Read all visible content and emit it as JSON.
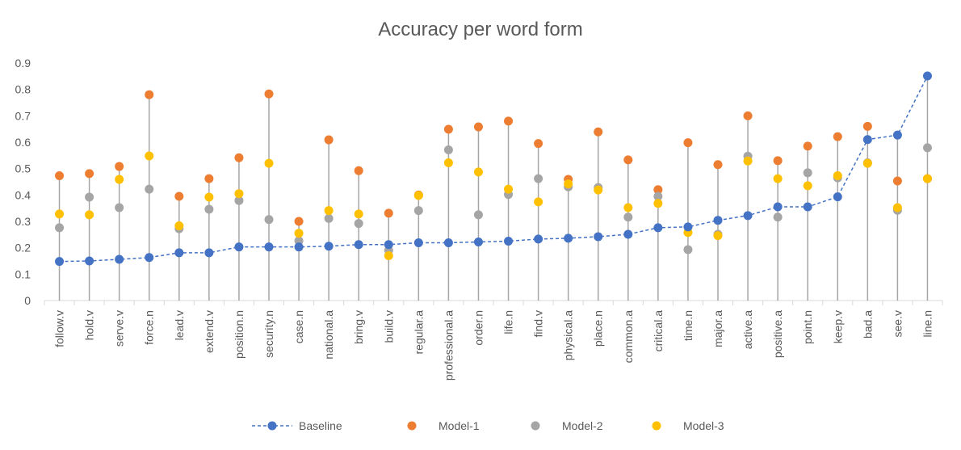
{
  "chart_data": {
    "type": "line",
    "title": "Accuracy per word form",
    "xlabel": "",
    "ylabel": "",
    "ylim": [
      0,
      0.9
    ],
    "y_ticks": [
      "0",
      "0.1",
      "0.2",
      "0.3",
      "0.4",
      "0.5",
      "0.6",
      "0.7",
      "0.8",
      "0.9"
    ],
    "y_tick_values": [
      0,
      0.1,
      0.2,
      0.3,
      0.4,
      0.5,
      0.6,
      0.7,
      0.8,
      0.9
    ],
    "legend_position": "bottom",
    "grid": false,
    "categories": [
      "follow.v",
      "hold.v",
      "serve.v",
      "force.n",
      "lead.v",
      "extend.v",
      "position.n",
      "security.n",
      "case.n",
      "national.a",
      "bring.v",
      "build.v",
      "regular.a",
      "professional.a",
      "order.n",
      "life.n",
      "find.v",
      "physical.a",
      "place.n",
      "common.a",
      "critical.a",
      "time.n",
      "major.a",
      "active.a",
      "positive.a",
      "point.n",
      "keep.v",
      "bad.a",
      "see.v",
      "line.n"
    ],
    "series": [
      {
        "name": "Baseline",
        "style": "dashed-line-markers",
        "color": "#4472c4",
        "values": [
          0.148,
          0.15,
          0.156,
          0.163,
          0.181,
          0.181,
          0.203,
          0.203,
          0.203,
          0.206,
          0.212,
          0.212,
          0.219,
          0.219,
          0.222,
          0.225,
          0.233,
          0.236,
          0.242,
          0.251,
          0.276,
          0.279,
          0.304,
          0.322,
          0.355,
          0.355,
          0.393,
          0.61,
          0.627,
          0.851
        ]
      },
      {
        "name": "Model-1",
        "style": "markers",
        "color": "#ed7d31",
        "values": [
          0.473,
          0.481,
          0.508,
          0.78,
          0.395,
          0.462,
          0.541,
          0.783,
          0.3,
          0.609,
          0.492,
          0.331,
          0.4,
          0.649,
          0.658,
          0.68,
          0.595,
          0.459,
          0.639,
          0.533,
          0.42,
          0.598,
          0.515,
          0.7,
          0.53,
          0.585,
          0.621,
          0.66,
          0.453,
          0.462
        ]
      },
      {
        "name": "Model-2",
        "style": "markers",
        "color": "#a5a5a5",
        "values": [
          0.276,
          0.392,
          0.352,
          0.422,
          0.272,
          0.346,
          0.379,
          0.307,
          0.226,
          0.311,
          0.292,
          0.19,
          0.341,
          0.571,
          0.325,
          0.402,
          0.462,
          0.431,
          0.428,
          0.316,
          0.395,
          0.193,
          0.251,
          0.547,
          0.316,
          0.484,
          0.465,
          0.522,
          0.342,
          0.579
        ]
      },
      {
        "name": "Model-3",
        "style": "markers",
        "color": "#ffc000",
        "values": [
          0.328,
          0.325,
          0.459,
          0.548,
          0.283,
          0.392,
          0.405,
          0.52,
          0.255,
          0.341,
          0.328,
          0.17,
          0.398,
          0.522,
          0.487,
          0.422,
          0.374,
          0.442,
          0.419,
          0.352,
          0.368,
          0.258,
          0.246,
          0.529,
          0.462,
          0.435,
          0.473,
          0.52,
          0.352,
          0.462
        ]
      }
    ]
  }
}
